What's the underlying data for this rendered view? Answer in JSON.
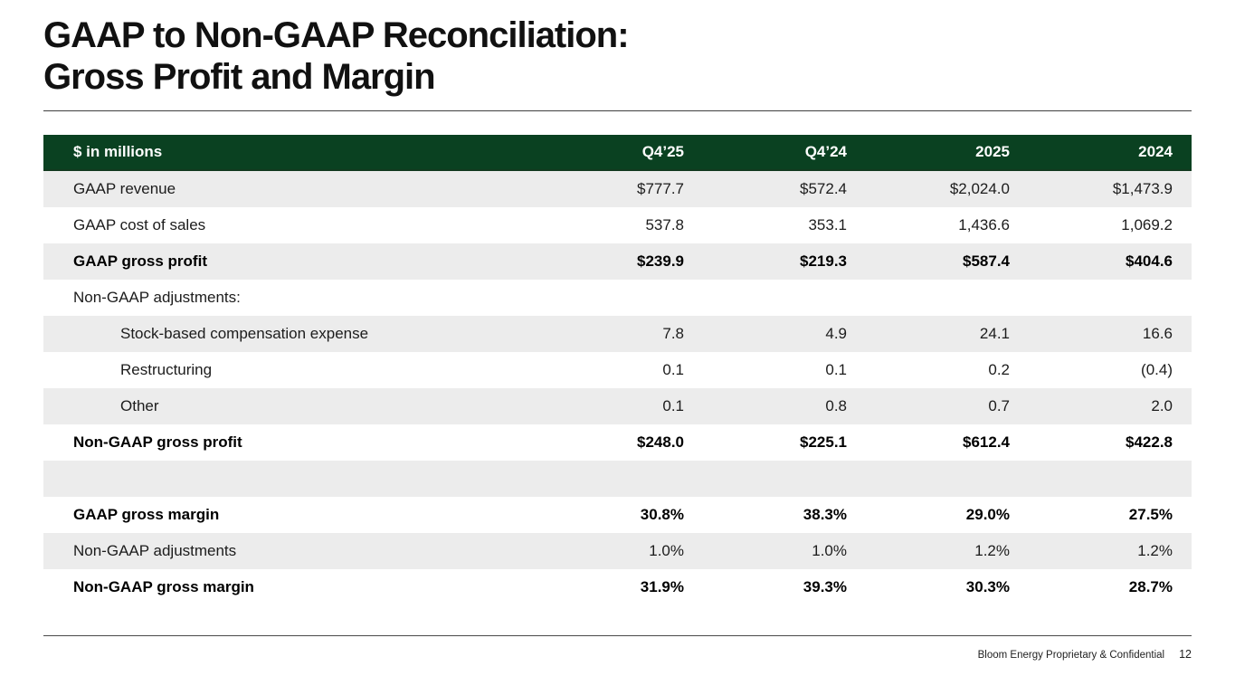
{
  "slide": {
    "title_line1": "GAAP to Non-GAAP Reconciliation:",
    "title_line2": "Gross Profit and Margin"
  },
  "table": {
    "unit_label": "$ in millions",
    "columns": [
      "Q4’25",
      "Q4’24",
      "2025",
      "2024"
    ],
    "rows": [
      {
        "label": "GAAP revenue",
        "values": [
          "$777.7",
          "$572.4",
          "$2,024.0",
          "$1,473.9"
        ],
        "bold": false,
        "indent": false
      },
      {
        "label": "GAAP cost of sales",
        "values": [
          "537.8",
          "353.1",
          "1,436.6",
          "1,069.2"
        ],
        "bold": false,
        "indent": false
      },
      {
        "label": "GAAP gross profit",
        "values": [
          "$239.9",
          "$219.3",
          "$587.4",
          "$404.6"
        ],
        "bold": true,
        "indent": false
      },
      {
        "label": "Non-GAAP adjustments:",
        "values": [
          "",
          "",
          "",
          ""
        ],
        "bold": false,
        "indent": false
      },
      {
        "label": "Stock-based compensation expense",
        "values": [
          "7.8",
          "4.9",
          "24.1",
          "16.6"
        ],
        "bold": false,
        "indent": true
      },
      {
        "label": "Restructuring",
        "values": [
          "0.1",
          "0.1",
          "0.2",
          "(0.4)"
        ],
        "bold": false,
        "indent": true
      },
      {
        "label": "Other",
        "values": [
          "0.1",
          "0.8",
          "0.7",
          "2.0"
        ],
        "bold": false,
        "indent": true
      },
      {
        "label": "Non-GAAP gross profit",
        "values": [
          "$248.0",
          "$225.1",
          "$612.4",
          "$422.8"
        ],
        "bold": true,
        "indent": false
      },
      {
        "label": "",
        "values": [
          "",
          "",
          "",
          ""
        ],
        "bold": false,
        "indent": false
      },
      {
        "label": "GAAP gross margin",
        "values": [
          "30.8%",
          "38.3%",
          "29.0%",
          "27.5%"
        ],
        "bold": true,
        "indent": false
      },
      {
        "label": "Non-GAAP adjustments",
        "values": [
          "1.0%",
          "1.0%",
          "1.2%",
          "1.2%"
        ],
        "bold": false,
        "indent": false
      },
      {
        "label": "Non-GAAP gross margin",
        "values": [
          "31.9%",
          "39.3%",
          "30.3%",
          "28.7%"
        ],
        "bold": true,
        "indent": false
      }
    ]
  },
  "footer": {
    "note": "Bloom Energy Proprietary & Confidential",
    "page": "12"
  },
  "colors": {
    "header_bg": "#0A4121",
    "header_text": "#FFFFFF",
    "row_stripe": "#ECECEC",
    "divider": "#3F3F3F"
  }
}
